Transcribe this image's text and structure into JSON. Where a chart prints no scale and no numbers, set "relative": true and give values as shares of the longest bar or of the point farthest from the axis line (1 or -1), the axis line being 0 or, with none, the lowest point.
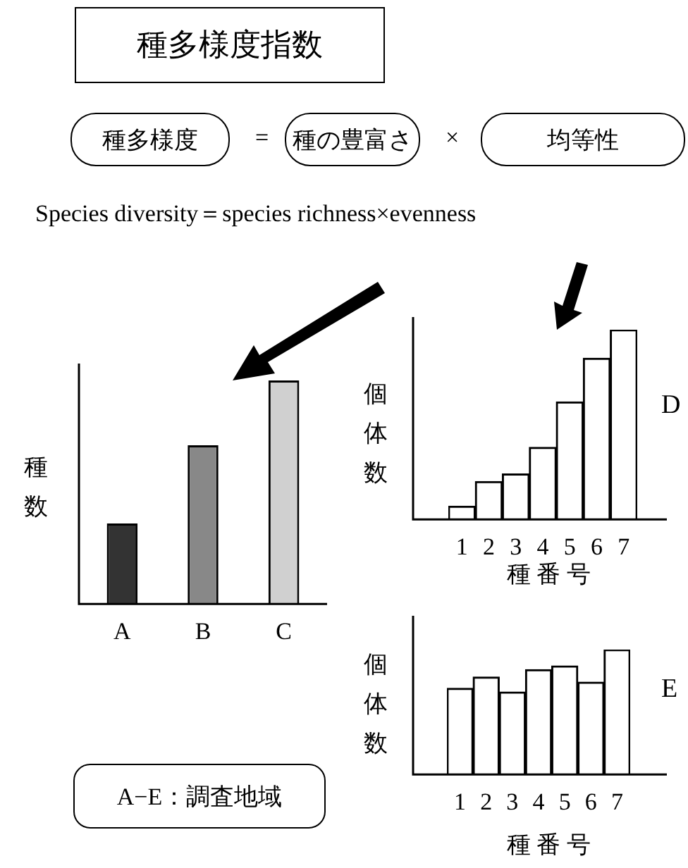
{
  "chart_data": [
    {
      "type": "bar",
      "title": "種多様度指数",
      "ylabel": "種数",
      "categories": [
        "A",
        "B",
        "C"
      ],
      "values": [
        0.36,
        0.71,
        1
      ],
      "colors": [
        "#333333",
        "#888888",
        "#d0d0d0"
      ],
      "relative": true,
      "annotations": [
        "種多様度",
        "=",
        "種の豊富さ",
        "×",
        "均等性",
        "Species diversity＝species richness×evenness",
        "A−E：調査地域"
      ]
    },
    {
      "type": "bar",
      "annotations": [
        "D"
      ],
      "xlabel": "種 番 号",
      "ylabel": "個体数",
      "categories": [
        "1",
        "2",
        "3",
        "4",
        "5",
        "6",
        "7"
      ],
      "values": [
        0.07,
        0.2,
        0.24,
        0.38,
        0.62,
        0.85,
        1
      ],
      "color": "#ffffff",
      "relative": true
    },
    {
      "type": "bar",
      "annotations": [
        "E"
      ],
      "xlabel": "種 番 号",
      "ylabel": "個体数",
      "categories": [
        "1",
        "2",
        "3",
        "4",
        "5",
        "6",
        "7"
      ],
      "values": [
        0.69,
        0.78,
        0.66,
        0.84,
        0.87,
        0.74,
        1
      ],
      "color": "#ffffff",
      "relative": true
    }
  ]
}
